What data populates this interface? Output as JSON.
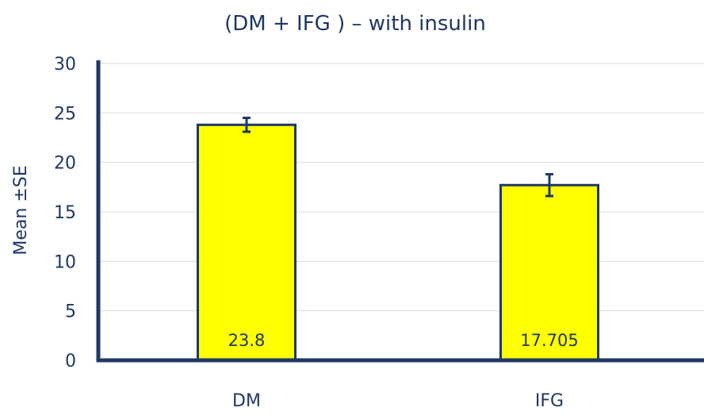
{
  "chart_data": {
    "type": "bar",
    "title": "(DM + IFG ) – with  insulin",
    "xlabel": "",
    "ylabel": "Mean ±SE",
    "categories": [
      "DM",
      "IFG"
    ],
    "values": [
      23.8,
      17.705
    ],
    "value_labels": [
      "23.8",
      "17.705"
    ],
    "error": [
      0.7,
      1.1
    ],
    "ylim": [
      0,
      30
    ],
    "yticks": [
      0,
      5,
      10,
      15,
      20,
      25,
      30
    ],
    "grid": true,
    "legend": "none"
  },
  "colors": {
    "bar_fill": "#ffff00",
    "bar_stroke": "#1f3864",
    "axis": "#1f3864",
    "text": "#1f3864",
    "grid": "#d9d9d9"
  }
}
